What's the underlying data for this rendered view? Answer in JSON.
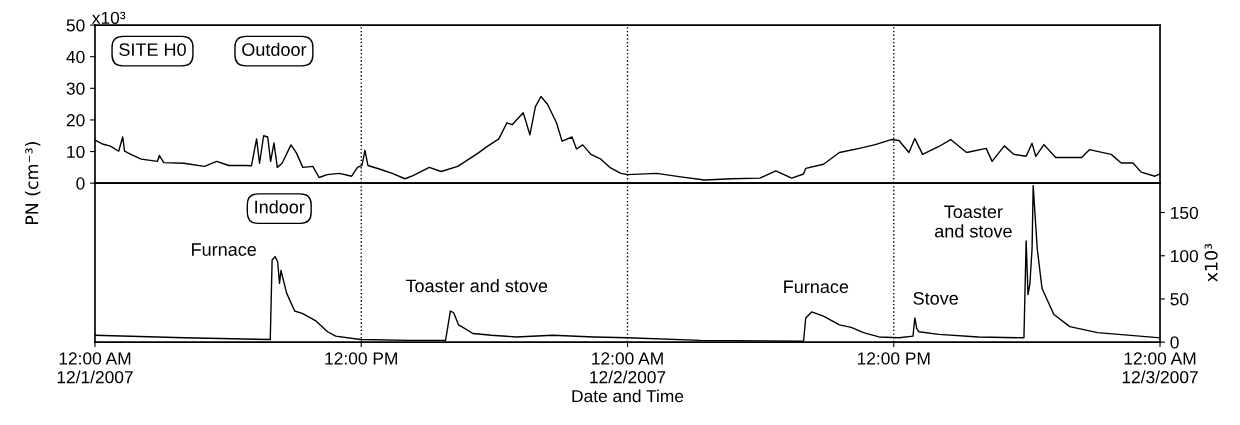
{
  "chart_data": [
    {
      "type": "line",
      "ylabel": "PN (cm⁻³)",
      "xlim": [
        "2007-12-01T00:00",
        "2007-12-03T00:00"
      ],
      "ylim": [
        0,
        50
      ],
      "yticks": [
        0,
        10,
        20,
        30,
        40,
        50
      ],
      "tick_labels": "y",
      "line_style": "solid",
      "marker": "none",
      "annotations": [
        "x10³",
        "SITE H0",
        "Outdoor"
      ],
      "ref_lines": [
        {
          "axis": "x",
          "value": "2007-12-01T12:00",
          "color": "#000000",
          "line_style": "dotted"
        },
        {
          "axis": "x",
          "value": "2007-12-02T00:00",
          "color": "#000000",
          "line_style": "dotted"
        },
        {
          "axis": "x",
          "value": "2007-12-02T12:00",
          "color": "#000000",
          "line_style": "dotted"
        }
      ],
      "series": [
        {
          "color": "#000000",
          "x": [
            "2007-12-01T00:00",
            "2007-12-01T00:20",
            "2007-12-01T00:42",
            "2007-12-01T01:04",
            "2007-12-01T01:15",
            "2007-12-01T01:20",
            "2007-12-01T01:37",
            "2007-12-01T02:05",
            "2007-12-01T02:49",
            "2007-12-01T02:54",
            "2007-12-01T03:06",
            "2007-12-01T04:00",
            "2007-12-01T04:56",
            "2007-12-01T05:29",
            "2007-12-01T06:02",
            "2007-12-01T06:47",
            "2007-12-01T07:03",
            "2007-12-01T07:17",
            "2007-12-01T07:25",
            "2007-12-01T07:36",
            "2007-12-01T07:47",
            "2007-12-01T07:55",
            "2007-12-01T08:04",
            "2007-12-01T08:13",
            "2007-12-01T08:26",
            "2007-12-01T08:50",
            "2007-12-01T09:05",
            "2007-12-01T09:22",
            "2007-12-01T09:49",
            "2007-12-01T10:06",
            "2007-12-01T10:28",
            "2007-12-01T11:01",
            "2007-12-01T11:34",
            "2007-12-01T11:50",
            "2007-12-01T12:02",
            "2007-12-01T12:10",
            "2007-12-01T12:18",
            "2007-12-01T12:51",
            "2007-12-01T13:24",
            "2007-12-01T13:58",
            "2007-12-01T14:20",
            "2007-12-01T15:04",
            "2007-12-01T15:36",
            "2007-12-01T16:21",
            "2007-12-01T17:16",
            "2007-12-01T17:38",
            "2007-12-01T18:12",
            "2007-12-01T18:34",
            "2007-12-01T18:48",
            "2007-12-01T19:18",
            "2007-12-01T19:36",
            "2007-12-01T19:51",
            "2007-12-01T20:06",
            "2007-12-01T20:24",
            "2007-12-01T20:48",
            "2007-12-01T21:03",
            "2007-12-01T21:30",
            "2007-12-01T21:42",
            "2007-12-01T21:59",
            "2007-12-01T22:21",
            "2007-12-01T22:48",
            "2007-12-01T23:12",
            "2007-12-01T23:42",
            "2007-12-02T00:00",
            "2007-12-02T01:19",
            "2007-12-02T02:24",
            "2007-12-02T03:28",
            "2007-12-02T04:43",
            "2007-12-02T05:58",
            "2007-12-02T06:41",
            "2007-12-02T07:24",
            "2007-12-02T07:56",
            "2007-12-02T08:02",
            "2007-12-02T08:50",
            "2007-12-02T09:33",
            "2007-12-02T10:27",
            "2007-12-02T11:10",
            "2007-12-02T11:53",
            "2007-12-02T12:14",
            "2007-12-02T12:41",
            "2007-12-02T12:57",
            "2007-12-02T13:18",
            "2007-12-02T14:02",
            "2007-12-02T14:34",
            "2007-12-02T15:17",
            "2007-12-02T16:10",
            "2007-12-02T16:26",
            "2007-12-02T16:59",
            "2007-12-02T17:25",
            "2007-12-02T17:58",
            "2007-12-02T18:14",
            "2007-12-02T18:24",
            "2007-12-02T18:46",
            "2007-12-02T19:18",
            "2007-12-02T20:28",
            "2007-12-02T20:49",
            "2007-12-02T21:48",
            "2007-12-02T22:15",
            "2007-12-02T22:47",
            "2007-12-02T23:09",
            "2007-12-02T23:46",
            "2007-12-03T00:00"
          ],
          "values": [
            13.6,
            12.4,
            11.7,
            10.1,
            14.6,
            10.1,
            9.1,
            7.6,
            6.9,
            8.8,
            6.5,
            6.3,
            5.3,
            6.9,
            5.6,
            5.6,
            5.5,
            14.0,
            6.3,
            15.0,
            14.6,
            6.9,
            12.7,
            5.0,
            6.3,
            12.1,
            9.5,
            5.0,
            5.3,
            1.8,
            2.7,
            3.1,
            2.2,
            5.0,
            5.6,
            10.4,
            5.6,
            4.4,
            3.1,
            1.4,
            2.4,
            5.0,
            3.7,
            5.3,
            9.5,
            11.4,
            14.0,
            19.1,
            18.5,
            22.3,
            15.3,
            24.2,
            27.4,
            24.9,
            19.1,
            13.3,
            14.6,
            10.8,
            12.1,
            9.1,
            7.6,
            5.0,
            3.1,
            2.7,
            3.1,
            2.0,
            1.0,
            1.4,
            1.6,
            3.9,
            1.6,
            2.9,
            4.7,
            6.0,
            9.7,
            11.0,
            12.2,
            13.8,
            13.5,
            9.7,
            14.1,
            9.1,
            11.6,
            13.8,
            9.7,
            11.0,
            6.9,
            11.8,
            9.1,
            8.5,
            12.6,
            8.5,
            12.2,
            8.1,
            8.1,
            10.6,
            9.1,
            6.4,
            6.4,
            3.5,
            2.2,
            2.9
          ]
        }
      ]
    },
    {
      "type": "line",
      "xlabel": "Date and Time",
      "ylabel": "x10³",
      "xlim": [
        "2007-12-01T00:00",
        "2007-12-03T00:00"
      ],
      "xticks": [
        {
          "value": "2007-12-01T00:00",
          "label": "12:00 AM\n12/1/2007"
        },
        {
          "value": "2007-12-01T12:00",
          "label": "12:00 PM"
        },
        {
          "value": "2007-12-02T00:00",
          "label": "12:00 AM\n12/2/2007"
        },
        {
          "value": "2007-12-02T12:00",
          "label": "12:00 PM"
        },
        {
          "value": "2007-12-03T00:00",
          "label": "12:00 AM\n12/3/2007"
        }
      ],
      "ylim": [
        0,
        184
      ],
      "yticks": [
        0,
        50,
        100,
        150
      ],
      "line_style": "solid",
      "marker": "none",
      "annotations": [
        "Indoor",
        {
          "text": "Furnace",
          "x": "2007-12-01T08:07",
          "y": 99
        },
        {
          "text": "Toaster and stove",
          "x": "2007-12-01T16:01",
          "y": 36
        },
        {
          "text": "Furnace",
          "x": "2007-12-02T08:18",
          "y": 35
        },
        {
          "text": "Stove",
          "x": "2007-12-02T12:57",
          "y": 28
        },
        {
          "text": "Toaster\nand stove",
          "x": "2007-12-02T17:58",
          "y": 117
        }
      ],
      "ref_lines": [
        {
          "axis": "x",
          "value": "2007-12-01T12:00",
          "color": "#000000",
          "line_style": "dotted"
        },
        {
          "axis": "x",
          "value": "2007-12-02T00:00",
          "color": "#000000",
          "line_style": "dotted"
        },
        {
          "axis": "x",
          "value": "2007-12-02T12:00",
          "color": "#000000",
          "line_style": "dotted"
        }
      ],
      "series": [
        {
          "color": "#000000",
          "x": [
            "2007-12-01T00:00",
            "2007-12-01T04:01",
            "2007-12-01T07:54",
            "2007-12-01T07:59",
            "2007-12-01T08:07",
            "2007-12-01T08:14",
            "2007-12-01T08:19",
            "2007-12-01T08:23",
            "2007-12-01T08:38",
            "2007-12-01T09:00",
            "2007-12-01T09:22",
            "2007-12-01T09:56",
            "2007-12-01T10:29",
            "2007-12-01T10:51",
            "2007-12-01T11:58",
            "2007-12-01T14:11",
            "2007-12-01T15:48",
            "2007-12-01T16:01",
            "2007-12-01T16:10",
            "2007-12-01T16:23",
            "2007-12-01T16:35",
            "2007-12-01T17:02",
            "2007-12-01T17:52",
            "2007-12-01T18:59",
            "2007-12-01T20:38",
            "2007-12-01T22:29",
            "2007-12-02T00:00",
            "2007-12-02T03:17",
            "2007-12-02T07:56",
            "2007-12-02T08:02",
            "2007-12-02T08:18",
            "2007-12-02T08:50",
            "2007-12-02T09:33",
            "2007-12-02T10:05",
            "2007-12-02T10:38",
            "2007-12-02T11:20",
            "2007-12-02T12:14",
            "2007-12-02T12:52",
            "2007-12-02T12:57",
            "2007-12-02T13:02",
            "2007-12-02T13:08",
            "2007-12-02T14:02",
            "2007-12-02T15:49",
            "2007-12-02T17:52",
            "2007-12-02T17:58",
            "2007-12-02T18:03",
            "2007-12-02T18:08",
            "2007-12-02T18:14",
            "2007-12-02T18:17",
            "2007-12-02T18:28",
            "2007-12-02T18:41",
            "2007-12-02T19:13",
            "2007-12-02T19:56",
            "2007-12-02T21:11",
            "2007-12-03T00:00"
          ],
          "values": [
            8,
            5,
            3,
            95,
            99,
            93,
            68,
            83,
            57,
            36,
            33,
            25,
            12,
            7,
            3,
            2,
            2,
            36,
            34,
            20,
            17,
            10,
            8,
            6,
            8,
            6,
            5,
            2,
            1,
            28,
            35,
            30,
            20,
            17,
            11,
            6,
            5,
            7,
            28,
            16,
            12,
            9,
            6,
            5,
            117,
            55,
            67,
            108,
            181,
            108,
            62,
            32,
            18,
            11,
            5
          ]
        }
      ]
    }
  ]
}
